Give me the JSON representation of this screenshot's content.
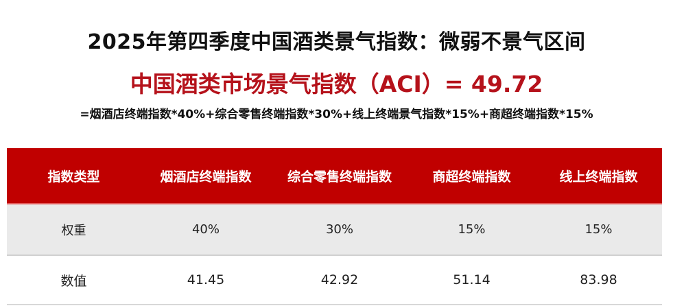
{
  "title": "2025年第四季度中国酒类景气指数：微弱不景气区间",
  "aci_line": "中国酒类市场景气指数（ACI）= 49.72",
  "formula": "=烟酒店终端指数*40%+综合零售终端指数*30%+线上终端景气指数*15%+商超终端指数*15%",
  "colors": {
    "accent": "#c00000",
    "aci_text": "#b5121b",
    "weight_row_bg": "#eaeaea"
  },
  "table": {
    "headers": [
      "指数类型",
      "烟酒店终端指数",
      "综合零售终端指数",
      "商超终端指数",
      "线上终端指数"
    ],
    "rows": [
      [
        "权重",
        "40%",
        "30%",
        "15%",
        "15%"
      ],
      [
        "数值",
        "41.45",
        "42.92",
        "51.14",
        "83.98"
      ]
    ]
  }
}
